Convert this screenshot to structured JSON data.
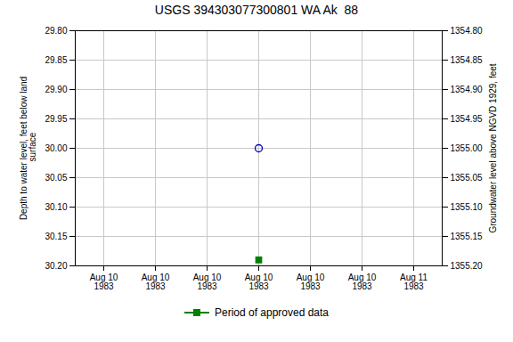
{
  "chart_data": {
    "type": "scatter",
    "title": "USGS 394303077300801 WA Ak  88",
    "categories": [
      "Aug 10\n1983",
      "Aug 10\n1983",
      "Aug 10\n1983",
      "Aug 10\n1983",
      "Aug 10\n1983",
      "Aug 10\n1983",
      "Aug 11\n1983"
    ],
    "series": [
      {
        "color": "#0000bb",
        "marker": "circle",
        "values": [
          null,
          null,
          null,
          30.0,
          null,
          null,
          null
        ]
      },
      {
        "name": "Period of approved data",
        "color": "#008000",
        "marker": "square",
        "values": [
          null,
          null,
          null,
          30.19,
          null,
          null,
          null
        ]
      }
    ],
    "ylabel": "Depth to water level, feet below land\n surface",
    "y2label": "Groundwater level above NGVD 1929, feet",
    "ylim": [
      30.2,
      29.8
    ],
    "yticks": [
      {
        "value": 29.8,
        "label": "29.80"
      },
      {
        "value": 29.85,
        "label": "29.85"
      },
      {
        "value": 29.9,
        "label": "29.90"
      },
      {
        "value": 29.95,
        "label": "29.95"
      },
      {
        "value": 30.0,
        "label": "30.00"
      },
      {
        "value": 30.05,
        "label": "30.05"
      },
      {
        "value": 30.1,
        "label": "30.10"
      },
      {
        "value": 30.15,
        "label": "30.15"
      },
      {
        "value": 30.2,
        "label": "30.20"
      }
    ],
    "y2lim": [
      1355.2,
      1354.8
    ],
    "y2ticks": [
      {
        "value": 1355.2,
        "label": "1355.20"
      },
      {
        "value": 1355.15,
        "label": "1355.15"
      },
      {
        "value": 1355.1,
        "label": "1355.10"
      },
      {
        "value": 1355.05,
        "label": "1355.05"
      },
      {
        "value": 1355.0,
        "label": "1355.00"
      },
      {
        "value": 1354.95,
        "label": "1354.95"
      },
      {
        "value": 1354.9,
        "label": "1354.90"
      },
      {
        "value": 1354.85,
        "label": "1354.85"
      },
      {
        "value": 1354.8,
        "label": "1354.80"
      }
    ],
    "grid": true,
    "legend": "bottom"
  }
}
